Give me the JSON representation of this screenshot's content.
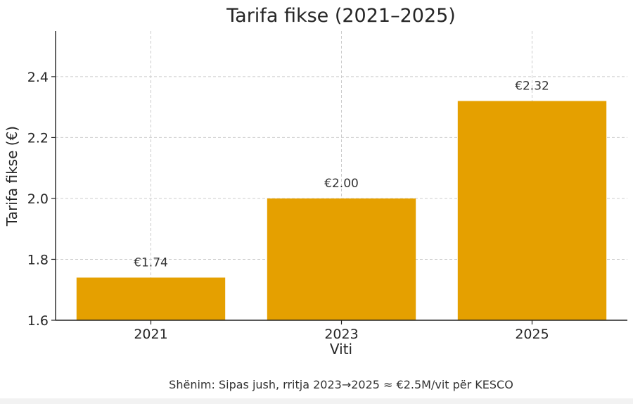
{
  "chart_data": {
    "type": "bar",
    "title": "Tarifa fikse (2021–2025)",
    "xlabel": "Viti",
    "ylabel": "Tarifa fikse (€)",
    "categories": [
      "2021",
      "2023",
      "2025"
    ],
    "values": [
      1.74,
      2.0,
      2.32
    ],
    "data_labels": [
      "€1.74",
      "€2.00",
      "€2.32"
    ],
    "ylim": [
      1.6,
      2.55
    ],
    "yticks": [
      1.6,
      1.8,
      2.0,
      2.2,
      2.4
    ],
    "ytick_labels": [
      "1.6",
      "1.8",
      "2.0",
      "2.2",
      "2.4"
    ],
    "grid": true,
    "bar_color": "#e5a000",
    "note": "Shënim: Sipas jush, rritja 2023→2025 ≈ €2.5M/vit për KESCO"
  }
}
